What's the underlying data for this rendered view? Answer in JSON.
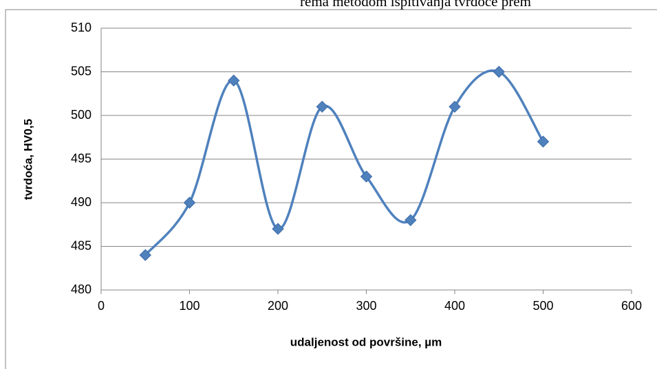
{
  "chart_data": {
    "type": "line",
    "annotation": "rema metodom ispitivanja tvrdoće prem",
    "xlabel": "udaljenost od površine, µm",
    "ylabel": "tvrdoća, HV0,5",
    "x": [
      50,
      100,
      150,
      200,
      250,
      300,
      350,
      400,
      450,
      500
    ],
    "series": [
      {
        "color": "#4f81bd",
        "values": [
          484,
          490,
          504,
          487,
          501,
          493,
          488,
          501,
          505,
          497
        ]
      }
    ],
    "xlim": [
      0,
      600
    ],
    "xticks": [
      0,
      100,
      200,
      300,
      400,
      500,
      600
    ],
    "ylim": [
      480,
      510
    ],
    "yticks": [
      480,
      485,
      490,
      495,
      500,
      505,
      510
    ],
    "grid": true,
    "smooth": true
  }
}
